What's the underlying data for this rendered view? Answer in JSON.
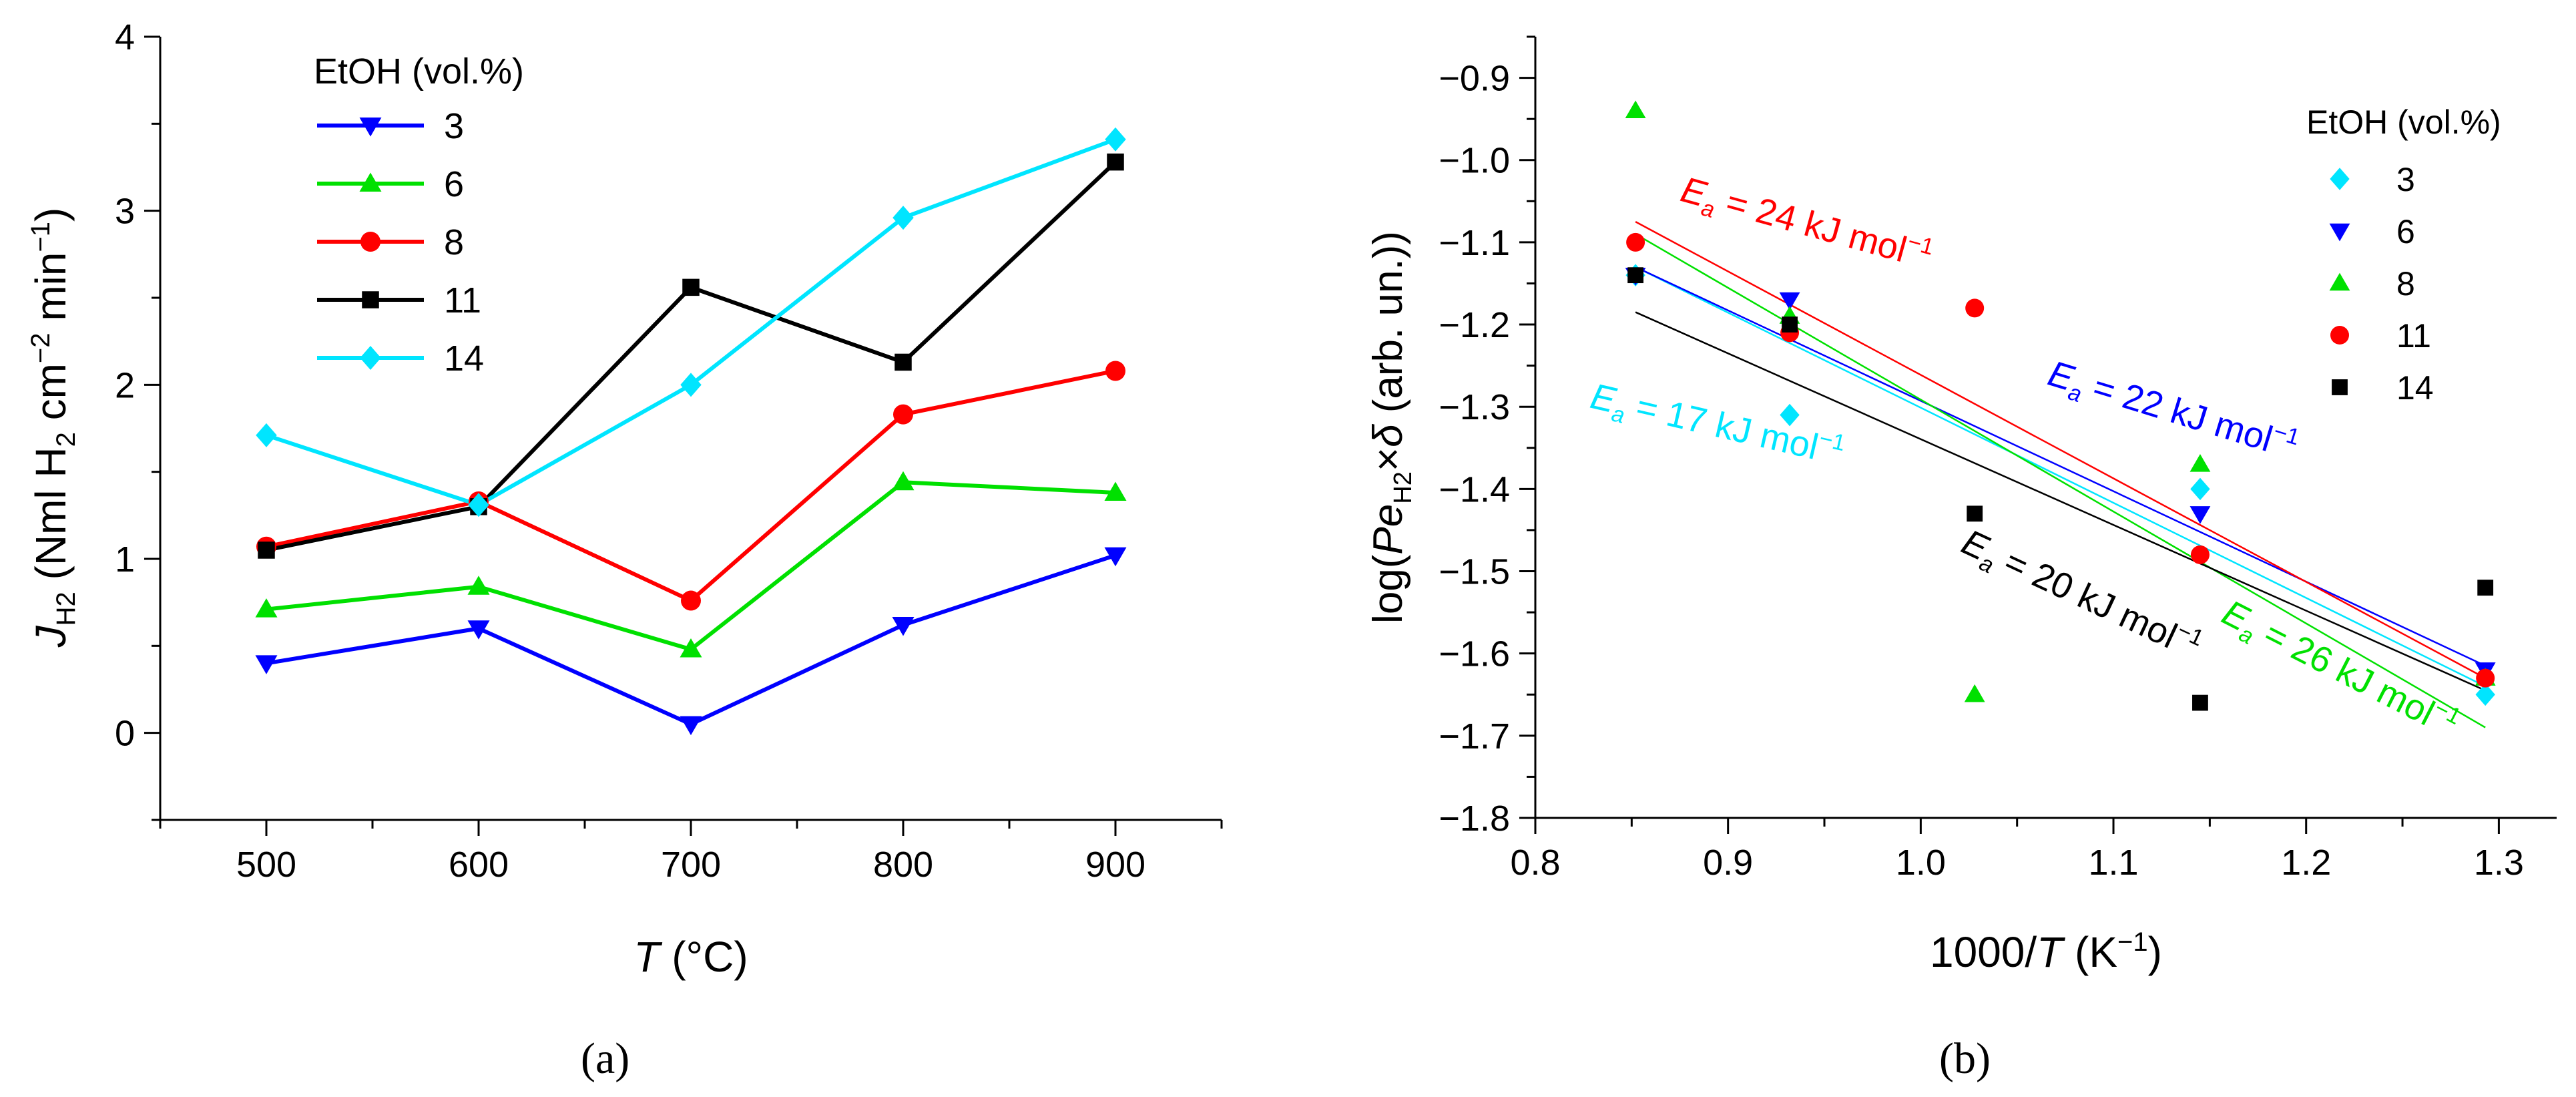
{
  "captions": {
    "a": "(a)",
    "b": "(b)"
  },
  "chart_data": [
    {
      "type": "line",
      "panel": "a",
      "xlabel_symbol": "T",
      "xlabel_unit": " (°C)",
      "ylabel_symbol": "J",
      "ylabel_sub": "H2",
      "ylabel_rest": " (Nml H",
      "ylabel_rest_sub": "2",
      "ylabel_rest2": " cm",
      "ylabel_sup1": "−2",
      "ylabel_rest3": " min",
      "ylabel_sup2": "−1",
      "ylabel_close": ")",
      "xlim": [
        450,
        950
      ],
      "ylim": [
        -0.5,
        4
      ],
      "xticks": [
        500,
        600,
        700,
        800,
        900
      ],
      "yticks": [
        0,
        1,
        2,
        3,
        4
      ],
      "x": [
        500,
        600,
        700,
        800,
        900
      ],
      "legend_title": "EtOH (vol.%)",
      "legend_position": "top-left",
      "series": [
        {
          "name": "3",
          "color": "#0000ff",
          "marker": "triangle-down",
          "values": [
            0.4,
            0.6,
            0.05,
            0.62,
            1.02
          ]
        },
        {
          "name": "6",
          "color": "#00e000",
          "marker": "triangle-up",
          "values": [
            0.71,
            0.84,
            0.48,
            1.44,
            1.38
          ]
        },
        {
          "name": "8",
          "color": "#ff0000",
          "marker": "circle",
          "values": [
            1.07,
            1.33,
            0.76,
            1.83,
            2.08
          ]
        },
        {
          "name": "11",
          "color": "#000000",
          "marker": "square",
          "values": [
            1.05,
            1.3,
            2.56,
            2.13,
            3.28
          ]
        },
        {
          "name": "14",
          "color": "#00e5ff",
          "marker": "diamond",
          "values": [
            1.71,
            1.31,
            2.0,
            2.96,
            3.41
          ]
        }
      ]
    },
    {
      "type": "scatter",
      "panel": "b",
      "xlabel_main": "1000/",
      "xlabel_symbol": "T",
      "xlabel_unit": " (K",
      "xlabel_sup": "−1",
      "xlabel_close": ")",
      "ylabel_open": "log(",
      "ylabel_pe": "Pe",
      "ylabel_sub": "H2",
      "ylabel_times": "×",
      "ylabel_delta": "δ",
      "ylabel_unit": " (arb. un.))",
      "xlim": [
        0.8,
        1.33
      ],
      "ylim": [
        -1.8,
        -0.85
      ],
      "xticks": [
        0.8,
        0.9,
        1.0,
        1.1,
        1.2,
        1.3
      ],
      "xtick_labels": [
        "0.8",
        "0.9",
        "1.0",
        "1.1",
        "1.2",
        "1.3"
      ],
      "yticks": [
        -1.8,
        -1.7,
        -1.6,
        -1.5,
        -1.4,
        -1.3,
        -1.2,
        -1.1,
        -1.0,
        -0.9
      ],
      "ytick_labels": [
        "−1.8",
        "−1.7",
        "−1.6",
        "−1.5",
        "−1.4",
        "−1.3",
        "−1.2",
        "−1.1",
        "−1.0",
        "−0.9"
      ],
      "x": [
        0.852,
        0.932,
        1.028,
        1.145,
        1.293
      ],
      "legend_title": "EtOH (vol.%)",
      "legend_position": "top-right",
      "series": [
        {
          "name": "3",
          "color": "#00e5ff",
          "marker": "diamond",
          "values": [
            -1.14,
            -1.31,
            null,
            -1.4,
            -1.65
          ],
          "fit": [
            -1.13,
            -1.64
          ]
        },
        {
          "name": "6",
          "color": "#0000ff",
          "marker": "triangle-down",
          "values": [
            -1.14,
            -1.17,
            null,
            -1.43,
            -1.62
          ],
          "fit": [
            -1.13,
            -1.615
          ]
        },
        {
          "name": "8",
          "color": "#00e000",
          "marker": "triangle-up",
          "values": [
            -0.94,
            -1.19,
            -1.65,
            -1.37,
            -1.63
          ],
          "fit": [
            -1.09,
            -1.69
          ]
        },
        {
          "name": "11",
          "color": "#ff0000",
          "marker": "circle",
          "values": [
            -1.1,
            -1.21,
            -1.18,
            -1.48,
            -1.63
          ],
          "fit": [
            -1.075,
            -1.63
          ]
        },
        {
          "name": "14",
          "color": "#000000",
          "marker": "square",
          "values": [
            -1.14,
            -1.2,
            -1.43,
            -1.66,
            -1.52
          ],
          "fit": [
            -1.185,
            -1.645
          ]
        }
      ],
      "annotations": [
        {
          "pre": "E",
          "sub": "a",
          "text": " = 24 kJ mol",
          "sup": "−1",
          "color": "#ff0000"
        },
        {
          "pre": "E",
          "sub": "a",
          "text": " = 22 kJ mol",
          "sup": "−1",
          "color": "#0000ff"
        },
        {
          "pre": "E",
          "sub": "a",
          "text": " = 17 kJ mol",
          "sup": "−1",
          "color": "#00e5ff"
        },
        {
          "pre": "E",
          "sub": "a",
          "text": " = 20 kJ mol",
          "sup": "−1",
          "color": "#000000"
        },
        {
          "pre": "E",
          "sub": "a",
          "text": " = 26 kJ mol",
          "sup": "−1",
          "color": "#00e000"
        }
      ]
    }
  ]
}
